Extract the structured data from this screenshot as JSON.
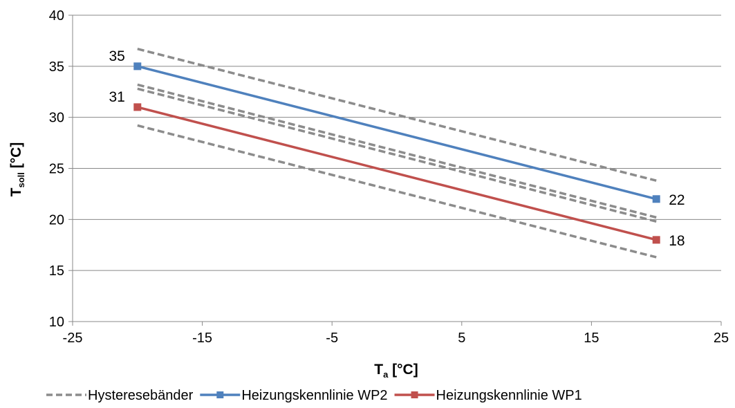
{
  "chart_data": {
    "type": "line",
    "title": "",
    "xlabel_main": "T",
    "xlabel_sub": "a",
    "xlabel_unit": " [°C]",
    "ylabel_main": "T",
    "ylabel_sub": "soll",
    "ylabel_unit": " [°C]",
    "xlim": [
      -25,
      25
    ],
    "ylim": [
      10,
      40
    ],
    "x_ticks": [
      -25,
      -15,
      -5,
      5,
      15,
      25
    ],
    "y_ticks": [
      10,
      15,
      20,
      25,
      30,
      35,
      40
    ],
    "grid": "horizontal",
    "legend_position": "bottom",
    "series": [
      {
        "name": "Hysteresebänder",
        "style": "dashed",
        "color": "#8c8c8c",
        "lines": [
          {
            "x": [
              -20,
              20
            ],
            "y": [
              36.7,
              23.8
            ]
          },
          {
            "x": [
              -20,
              20
            ],
            "y": [
              33.2,
              20.2
            ]
          },
          {
            "x": [
              -20,
              20
            ],
            "y": [
              32.8,
              19.8
            ]
          },
          {
            "x": [
              -20,
              20
            ],
            "y": [
              29.2,
              16.3
            ]
          }
        ]
      },
      {
        "name": "Heizungskennlinie WP2",
        "style": "solid",
        "color": "#4f81bd",
        "x": [
          -20,
          20
        ],
        "y": [
          35,
          22
        ],
        "labels": [
          "35",
          "22"
        ]
      },
      {
        "name": "Heizungskennlinie WP1",
        "style": "solid",
        "color": "#c0504d",
        "x": [
          -20,
          20
        ],
        "y": [
          31,
          18
        ],
        "labels": [
          "31",
          "18"
        ]
      }
    ]
  }
}
